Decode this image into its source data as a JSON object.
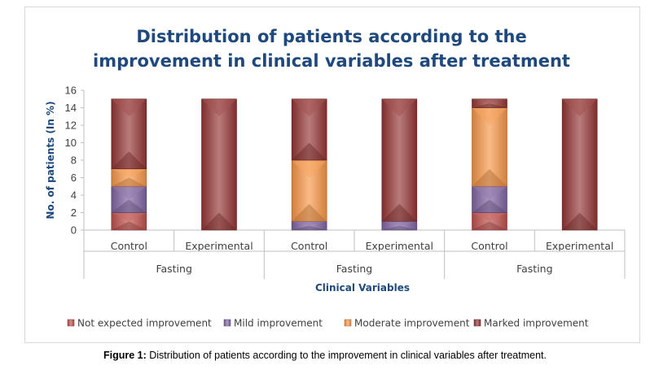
{
  "chart_data": {
    "type": "bar",
    "stacked": true,
    "title_line1": "Distribution of patients according to the",
    "title_line2": "improvement in clinical variables after treatment",
    "ylabel": "No. of patients (In %)",
    "xlabel": "Clinical Variables",
    "ylim": [
      0,
      16
    ],
    "yticks": [
      0,
      2,
      4,
      6,
      8,
      10,
      12,
      14,
      16
    ],
    "categories": [
      "Control",
      "Experimental",
      "Control",
      "Experimental",
      "Control",
      "Experimental"
    ],
    "groups": [
      "Fasting",
      "Fasting",
      "Fasting"
    ],
    "series": [
      {
        "name": "Not expected improvement",
        "color": "#c0504d",
        "values": [
          2,
          0,
          0,
          0,
          2,
          0
        ]
      },
      {
        "name": "Mild improvement",
        "color": "#8064a2",
        "values": [
          3,
          0,
          1,
          1,
          3,
          0
        ]
      },
      {
        "name": "Moderate improvement",
        "color": "#f79646",
        "values": [
          2,
          0,
          7,
          0,
          9,
          0
        ]
      },
      {
        "name": "Marked improvement",
        "color": "#943634",
        "values": [
          8,
          15,
          7,
          14,
          1,
          15
        ]
      }
    ],
    "grid": false,
    "legend_position": "bottom"
  },
  "colors": {
    "title": "#1f497d",
    "axis_text": "#404040",
    "axis_line": "#bfbfbf"
  },
  "caption": {
    "label": "Figure 1:",
    "text": " Distribution of patients according to the improvement in clinical variables after treatment."
  }
}
